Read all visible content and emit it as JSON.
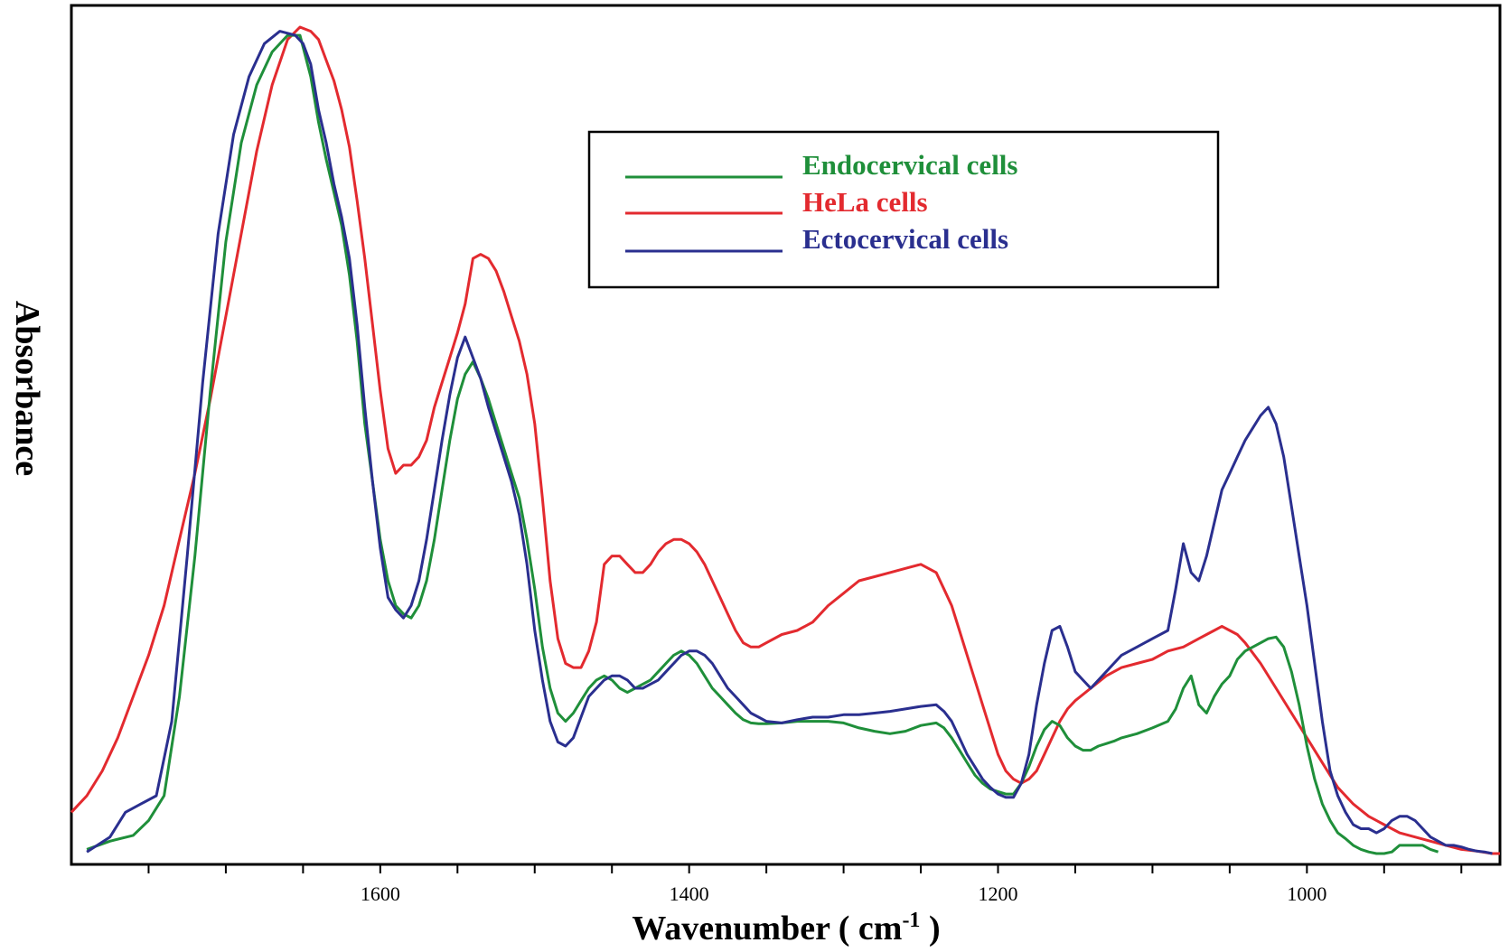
{
  "chart_data": {
    "type": "line",
    "title": "",
    "xlabel": "Wavenumber ( cm",
    "xlabel_superscript": "-1",
    "xlabel_suffix": " )",
    "ylabel": "Absorbance",
    "xlim": [
      1800,
      875
    ],
    "ylim": [
      0,
      1.0
    ],
    "x_reversed": true,
    "grid": false,
    "legend_position": "top-center",
    "x_ticks_major": [
      1600,
      1400,
      1200,
      1000
    ],
    "x_ticks_minor": [
      1750,
      1700,
      1650,
      1550,
      1500,
      1450,
      1350,
      1300,
      1250,
      1150,
      1100,
      1050,
      950,
      900
    ],
    "series": [
      {
        "name": "Endocervical cells",
        "color": "#1f8f3a",
        "x": [
          1790,
          1775,
          1760,
          1750,
          1740,
          1730,
          1720,
          1710,
          1700,
          1690,
          1680,
          1670,
          1660,
          1652,
          1645,
          1640,
          1635,
          1630,
          1625,
          1620,
          1615,
          1610,
          1605,
          1600,
          1595,
          1590,
          1585,
          1580,
          1575,
          1570,
          1565,
          1560,
          1555,
          1550,
          1545,
          1540,
          1535,
          1530,
          1525,
          1520,
          1515,
          1510,
          1505,
          1500,
          1495,
          1490,
          1485,
          1480,
          1475,
          1470,
          1465,
          1460,
          1455,
          1450,
          1445,
          1440,
          1435,
          1430,
          1425,
          1420,
          1415,
          1410,
          1405,
          1400,
          1395,
          1390,
          1385,
          1380,
          1375,
          1370,
          1365,
          1360,
          1355,
          1350,
          1340,
          1330,
          1320,
          1310,
          1300,
          1290,
          1280,
          1270,
          1260,
          1250,
          1240,
          1235,
          1230,
          1225,
          1220,
          1215,
          1210,
          1205,
          1200,
          1195,
          1190,
          1185,
          1180,
          1175,
          1170,
          1165,
          1160,
          1155,
          1150,
          1145,
          1140,
          1135,
          1130,
          1125,
          1120,
          1110,
          1100,
          1090,
          1085,
          1080,
          1075,
          1070,
          1065,
          1060,
          1055,
          1050,
          1045,
          1040,
          1035,
          1030,
          1025,
          1020,
          1015,
          1010,
          1005,
          1000,
          995,
          990,
          985,
          980,
          975,
          970,
          965,
          960,
          955,
          950,
          945,
          940,
          935,
          930,
          925,
          920,
          915
        ],
        "y": [
          0.005,
          0.015,
          0.022,
          0.04,
          0.07,
          0.19,
          0.36,
          0.56,
          0.74,
          0.86,
          0.93,
          0.97,
          0.99,
          0.99,
          0.94,
          0.885,
          0.84,
          0.8,
          0.76,
          0.7,
          0.62,
          0.52,
          0.45,
          0.38,
          0.33,
          0.3,
          0.29,
          0.285,
          0.3,
          0.33,
          0.38,
          0.44,
          0.5,
          0.55,
          0.58,
          0.595,
          0.575,
          0.55,
          0.52,
          0.49,
          0.46,
          0.43,
          0.38,
          0.32,
          0.25,
          0.2,
          0.17,
          0.16,
          0.17,
          0.185,
          0.2,
          0.21,
          0.215,
          0.21,
          0.2,
          0.195,
          0.2,
          0.205,
          0.21,
          0.22,
          0.23,
          0.24,
          0.245,
          0.24,
          0.23,
          0.215,
          0.2,
          0.19,
          0.18,
          0.17,
          0.162,
          0.158,
          0.157,
          0.157,
          0.158,
          0.16,
          0.16,
          0.16,
          0.158,
          0.152,
          0.148,
          0.145,
          0.148,
          0.155,
          0.158,
          0.152,
          0.14,
          0.125,
          0.11,
          0.095,
          0.085,
          0.078,
          0.075,
          0.072,
          0.072,
          0.085,
          0.105,
          0.13,
          0.15,
          0.16,
          0.155,
          0.14,
          0.13,
          0.125,
          0.125,
          0.13,
          0.133,
          0.136,
          0.14,
          0.145,
          0.152,
          0.16,
          0.175,
          0.2,
          0.215,
          0.18,
          0.17,
          0.19,
          0.205,
          0.215,
          0.235,
          0.245,
          0.25,
          0.255,
          0.26,
          0.262,
          0.25,
          0.22,
          0.18,
          0.13,
          0.09,
          0.06,
          0.04,
          0.025,
          0.018,
          0.01,
          0.005,
          0.002,
          0.0,
          0.0,
          0.002,
          0.01,
          0.01,
          0.01,
          0.01,
          0.005,
          0.002
        ]
      },
      {
        "name": "HeLa cells",
        "color": "#e32a2f",
        "x": [
          1800,
          1790,
          1780,
          1770,
          1760,
          1750,
          1740,
          1730,
          1720,
          1710,
          1700,
          1690,
          1680,
          1670,
          1660,
          1652,
          1645,
          1640,
          1635,
          1630,
          1625,
          1620,
          1615,
          1610,
          1605,
          1600,
          1595,
          1590,
          1585,
          1580,
          1575,
          1570,
          1565,
          1560,
          1555,
          1550,
          1545,
          1540,
          1535,
          1530,
          1525,
          1520,
          1515,
          1510,
          1505,
          1500,
          1495,
          1490,
          1485,
          1480,
          1475,
          1470,
          1465,
          1460,
          1455,
          1450,
          1445,
          1440,
          1435,
          1430,
          1425,
          1420,
          1415,
          1410,
          1405,
          1400,
          1395,
          1390,
          1385,
          1380,
          1375,
          1370,
          1365,
          1360,
          1355,
          1350,
          1340,
          1330,
          1320,
          1310,
          1300,
          1290,
          1280,
          1270,
          1260,
          1250,
          1240,
          1235,
          1230,
          1225,
          1220,
          1215,
          1210,
          1205,
          1200,
          1195,
          1190,
          1185,
          1180,
          1175,
          1170,
          1165,
          1160,
          1155,
          1150,
          1140,
          1130,
          1120,
          1110,
          1100,
          1090,
          1080,
          1070,
          1065,
          1060,
          1055,
          1050,
          1045,
          1040,
          1030,
          1020,
          1010,
          1000,
          990,
          980,
          970,
          960,
          950,
          940,
          930,
          920,
          910,
          900,
          890,
          880,
          875
        ],
        "y": [
          0.05,
          0.07,
          0.1,
          0.14,
          0.19,
          0.24,
          0.3,
          0.38,
          0.46,
          0.55,
          0.65,
          0.75,
          0.85,
          0.93,
          0.985,
          1.0,
          0.995,
          0.985,
          0.96,
          0.935,
          0.9,
          0.855,
          0.79,
          0.72,
          0.64,
          0.56,
          0.49,
          0.46,
          0.47,
          0.47,
          0.48,
          0.5,
          0.54,
          0.57,
          0.6,
          0.63,
          0.665,
          0.72,
          0.725,
          0.72,
          0.705,
          0.68,
          0.65,
          0.62,
          0.58,
          0.52,
          0.43,
          0.33,
          0.26,
          0.23,
          0.225,
          0.225,
          0.245,
          0.28,
          0.35,
          0.36,
          0.36,
          0.35,
          0.34,
          0.34,
          0.35,
          0.365,
          0.375,
          0.38,
          0.38,
          0.375,
          0.365,
          0.35,
          0.33,
          0.31,
          0.29,
          0.27,
          0.255,
          0.25,
          0.25,
          0.255,
          0.265,
          0.27,
          0.28,
          0.3,
          0.315,
          0.33,
          0.335,
          0.34,
          0.345,
          0.35,
          0.34,
          0.32,
          0.3,
          0.27,
          0.24,
          0.21,
          0.18,
          0.15,
          0.12,
          0.1,
          0.09,
          0.085,
          0.09,
          0.1,
          0.12,
          0.14,
          0.16,
          0.175,
          0.185,
          0.2,
          0.215,
          0.225,
          0.23,
          0.235,
          0.245,
          0.25,
          0.26,
          0.265,
          0.27,
          0.275,
          0.27,
          0.265,
          0.255,
          0.23,
          0.2,
          0.17,
          0.14,
          0.11,
          0.08,
          0.06,
          0.045,
          0.035,
          0.025,
          0.02,
          0.015,
          0.01,
          0.005,
          0.003,
          0.0,
          0.0
        ]
      },
      {
        "name": "Ectocervical cells",
        "color": "#2a2f8f",
        "x": [
          1790,
          1775,
          1765,
          1755,
          1745,
          1735,
          1725,
          1715,
          1705,
          1695,
          1685,
          1675,
          1665,
          1655,
          1650,
          1645,
          1640,
          1635,
          1630,
          1625,
          1620,
          1615,
          1610,
          1605,
          1600,
          1595,
          1590,
          1585,
          1580,
          1575,
          1570,
          1565,
          1560,
          1555,
          1550,
          1545,
          1540,
          1535,
          1530,
          1525,
          1520,
          1515,
          1510,
          1505,
          1500,
          1495,
          1490,
          1485,
          1480,
          1475,
          1470,
          1465,
          1460,
          1455,
          1450,
          1445,
          1440,
          1435,
          1430,
          1425,
          1420,
          1415,
          1410,
          1405,
          1400,
          1395,
          1390,
          1385,
          1380,
          1375,
          1370,
          1365,
          1360,
          1355,
          1350,
          1340,
          1330,
          1320,
          1310,
          1300,
          1290,
          1280,
          1270,
          1260,
          1250,
          1240,
          1235,
          1230,
          1225,
          1220,
          1215,
          1210,
          1205,
          1200,
          1195,
          1190,
          1185,
          1180,
          1175,
          1170,
          1165,
          1160,
          1155,
          1150,
          1145,
          1140,
          1135,
          1130,
          1125,
          1120,
          1110,
          1100,
          1090,
          1085,
          1080,
          1075,
          1070,
          1065,
          1060,
          1055,
          1050,
          1045,
          1040,
          1035,
          1030,
          1025,
          1020,
          1015,
          1010,
          1005,
          1000,
          995,
          990,
          985,
          980,
          975,
          970,
          965,
          960,
          955,
          950,
          945,
          940,
          935,
          930,
          925,
          920,
          915,
          910,
          905,
          900,
          895,
          890,
          885,
          880
        ],
        "y": [
          0.002,
          0.02,
          0.05,
          0.06,
          0.07,
          0.16,
          0.36,
          0.57,
          0.75,
          0.87,
          0.94,
          0.98,
          0.995,
          0.99,
          0.98,
          0.955,
          0.9,
          0.86,
          0.81,
          0.77,
          0.72,
          0.64,
          0.54,
          0.45,
          0.37,
          0.31,
          0.295,
          0.285,
          0.3,
          0.33,
          0.38,
          0.44,
          0.5,
          0.555,
          0.6,
          0.625,
          0.6,
          0.575,
          0.54,
          0.51,
          0.48,
          0.45,
          0.41,
          0.35,
          0.27,
          0.21,
          0.16,
          0.135,
          0.13,
          0.14,
          0.165,
          0.19,
          0.2,
          0.21,
          0.215,
          0.215,
          0.21,
          0.2,
          0.2,
          0.205,
          0.21,
          0.22,
          0.23,
          0.24,
          0.245,
          0.245,
          0.24,
          0.23,
          0.215,
          0.2,
          0.19,
          0.18,
          0.17,
          0.165,
          0.16,
          0.158,
          0.162,
          0.165,
          0.165,
          0.168,
          0.168,
          0.17,
          0.172,
          0.175,
          0.178,
          0.18,
          0.172,
          0.16,
          0.14,
          0.12,
          0.105,
          0.09,
          0.08,
          0.072,
          0.068,
          0.068,
          0.085,
          0.12,
          0.18,
          0.23,
          0.27,
          0.275,
          0.25,
          0.22,
          0.21,
          0.2,
          0.21,
          0.22,
          0.23,
          0.24,
          0.25,
          0.26,
          0.27,
          0.32,
          0.375,
          0.34,
          0.33,
          0.36,
          0.4,
          0.44,
          0.46,
          0.48,
          0.5,
          0.515,
          0.53,
          0.54,
          0.52,
          0.48,
          0.42,
          0.36,
          0.3,
          0.23,
          0.16,
          0.1,
          0.07,
          0.05,
          0.035,
          0.03,
          0.03,
          0.025,
          0.03,
          0.04,
          0.045,
          0.045,
          0.04,
          0.03,
          0.02,
          0.015,
          0.01,
          0.01,
          0.008,
          0.005,
          0.003,
          0.002,
          0.0
        ]
      }
    ]
  }
}
